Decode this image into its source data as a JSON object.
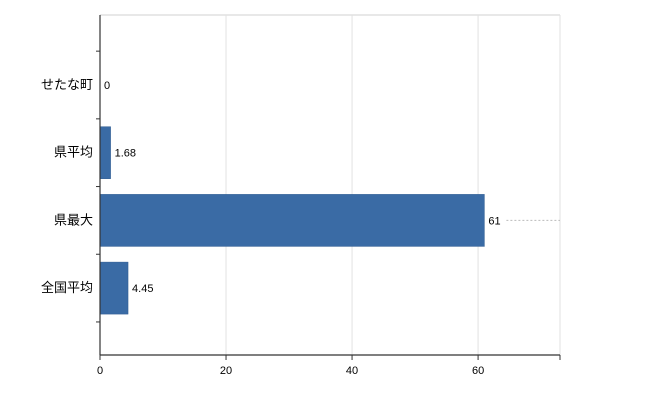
{
  "chart_data": {
    "type": "bar",
    "orientation": "horizontal",
    "title": "",
    "xlabel": "",
    "ylabel": "",
    "categories": [
      "せたな町",
      "県平均",
      "県最大",
      "全国平均"
    ],
    "values": [
      0,
      1.68,
      61,
      4.45
    ],
    "value_labels": [
      "0",
      "1.68",
      "61",
      "4.45"
    ],
    "xticks": [
      0,
      20,
      40,
      60
    ],
    "xtick_labels": [
      "0",
      "20",
      "40",
      "60"
    ],
    "xlim": [
      0,
      73
    ],
    "grid": "vertical-light",
    "legend": "none",
    "bar_color": "#3a6ba5",
    "bar_border_color": "#2e5a8f",
    "axis_color": "#333333",
    "gridline_color": "#e2e2e2",
    "top_border_color": "#d0d0d0",
    "label_color": "#000000"
  }
}
